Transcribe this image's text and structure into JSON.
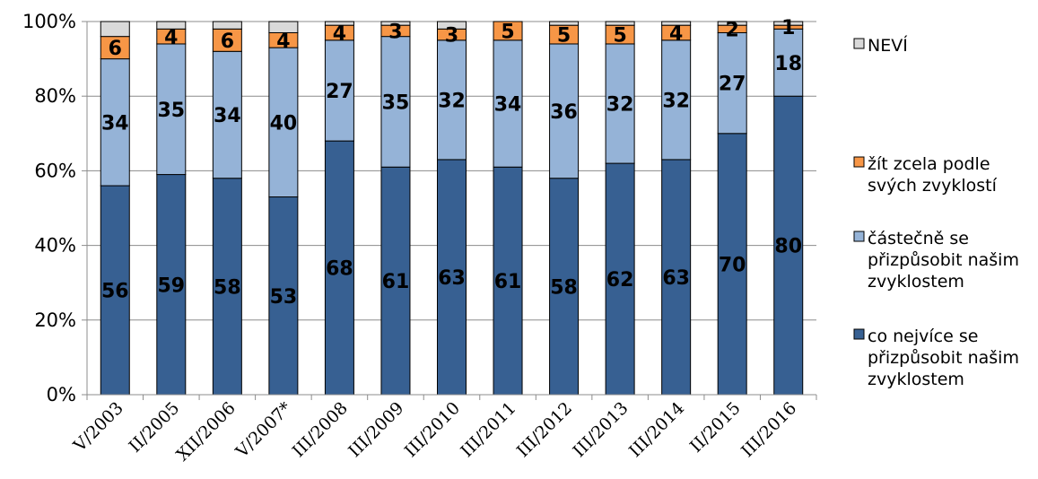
{
  "chart_data": {
    "type": "bar",
    "stacked": true,
    "percent": true,
    "categories": [
      "V/2003",
      "II/2005",
      "XII/2006",
      "V/2007*",
      "III/2008",
      "III/2009",
      "III/2010",
      "III/2011",
      "III/2012",
      "III/2013",
      "III/2014",
      "II/2015",
      "III/2016"
    ],
    "series": [
      {
        "name": "co nejvíce se přizpůsobit našim zvyklostem",
        "color": "#376092",
        "values": [
          56,
          59,
          58,
          53,
          68,
          61,
          63,
          61,
          58,
          62,
          63,
          70,
          80
        ]
      },
      {
        "name": "částečně se přizpůsobit našim zvyklostem",
        "color": "#95B3D7",
        "values": [
          34,
          35,
          34,
          40,
          27,
          35,
          32,
          34,
          36,
          32,
          32,
          27,
          18
        ]
      },
      {
        "name": "žít zcela podle svých zvyklostí",
        "color": "#F79646",
        "values": [
          6,
          4,
          6,
          4,
          4,
          3,
          3,
          5,
          5,
          5,
          4,
          2,
          1
        ]
      },
      {
        "name": "NEVÍ",
        "color": "#D9D9D9",
        "values": [
          4,
          2,
          2,
          3,
          1,
          1,
          2,
          0,
          1,
          1,
          1,
          1,
          1
        ]
      }
    ],
    "yticks": [
      "0%",
      "20%",
      "40%",
      "60%",
      "80%",
      "100%"
    ],
    "ylim": [
      0,
      100
    ],
    "grid": true,
    "legend_position": "right",
    "legend_order": [
      "NEVÍ",
      "žít zcela podle svých zvyklostí",
      "částečně se přizpůsobit našim zvyklostem",
      "co nejvíce se přizpůsobit našim zvyklostem"
    ]
  }
}
